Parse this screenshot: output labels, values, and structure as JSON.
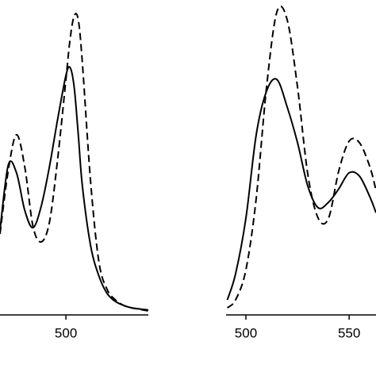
{
  "chart_data": [
    {
      "type": "line",
      "x": [
        468,
        472,
        476,
        480,
        484,
        488,
        492,
        496,
        500,
        502,
        504,
        506,
        508,
        512,
        516,
        520,
        524,
        528,
        532,
        540
      ],
      "series": [
        {
          "color": "#000000",
          "dash": "solid",
          "values": [
            27.6,
            48.8,
            46.3,
            34.1,
            28.4,
            35.4,
            48.3,
            63.8,
            78.0,
            80.6,
            74.2,
            58.7,
            41.9,
            22.5,
            12.7,
            7.0,
            4.4,
            3.1,
            2.3,
            1.6
          ]
        },
        {
          "color": "#000000",
          "dash": "dashed",
          "values": [
            26.4,
            47.0,
            58.7,
            48.3,
            28.9,
            23.8,
            30.2,
            50.9,
            76.7,
            89.7,
            97.4,
            96.1,
            81.9,
            43.2,
            17.3,
            8.3,
            4.9,
            3.1,
            2.3,
            1.3
          ]
        }
      ],
      "xlim": [
        468,
        540
      ],
      "xticks": [
        500
      ],
      "ylim": [
        0,
        100
      ]
    },
    {
      "type": "line",
      "x": [
        491,
        495,
        500,
        505,
        510,
        515,
        520,
        525,
        530,
        535,
        540,
        545,
        550,
        555,
        560,
        563
      ],
      "series": [
        {
          "color": "#000000",
          "dash": "solid",
          "values": [
            4.9,
            13.4,
            31.5,
            58.7,
            72.9,
            76.7,
            67.7,
            56.1,
            41.9,
            34.9,
            36.7,
            41.1,
            46.3,
            45.2,
            38.5,
            33.3
          ]
        },
        {
          "color": "#000000",
          "dash": "dashed",
          "values": [
            2.3,
            4.9,
            14.7,
            38.0,
            74.2,
            98.7,
            96.1,
            74.2,
            45.7,
            31.5,
            31.5,
            47.0,
            56.6,
            56.1,
            48.3,
            40.6
          ]
        }
      ],
      "xlim": [
        490.4,
        563
      ],
      "xticks": [
        500,
        550
      ],
      "ylim": [
        0,
        100
      ]
    }
  ]
}
